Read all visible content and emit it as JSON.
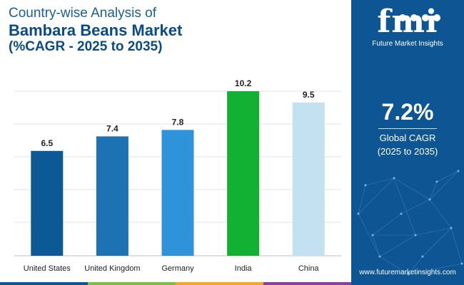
{
  "title": {
    "line1": "Country-wise Analysis of",
    "line2": "Bambara Beans Market",
    "line3": "(%CAGR - 2025 to 2035)"
  },
  "chart_data": {
    "type": "bar",
    "categories": [
      "United States",
      "United Kingdom",
      "Germany",
      "India",
      "China"
    ],
    "values": [
      6.5,
      7.4,
      7.8,
      10.2,
      9.5
    ],
    "bar_colors": [
      "#0b5a95",
      "#1c72b3",
      "#2e93d8",
      "#12b134",
      "#c4e1f2"
    ],
    "ylim": [
      0,
      10.2
    ],
    "grid": true,
    "xlabel": "",
    "ylabel": ""
  },
  "panel": {
    "logo_mark": "fmi",
    "logo_text": "Future Market Insights",
    "cagr_value": "7.2%",
    "cagr_label": "Global CAGR",
    "cagr_period": "(2025 to 2035)",
    "website": "www.futuremarketinsights.com",
    "background_color": "#0d5593"
  },
  "stripe_colors": [
    "#0d5593",
    "#7ac143",
    "#f5a623",
    "#8a3ea0"
  ]
}
